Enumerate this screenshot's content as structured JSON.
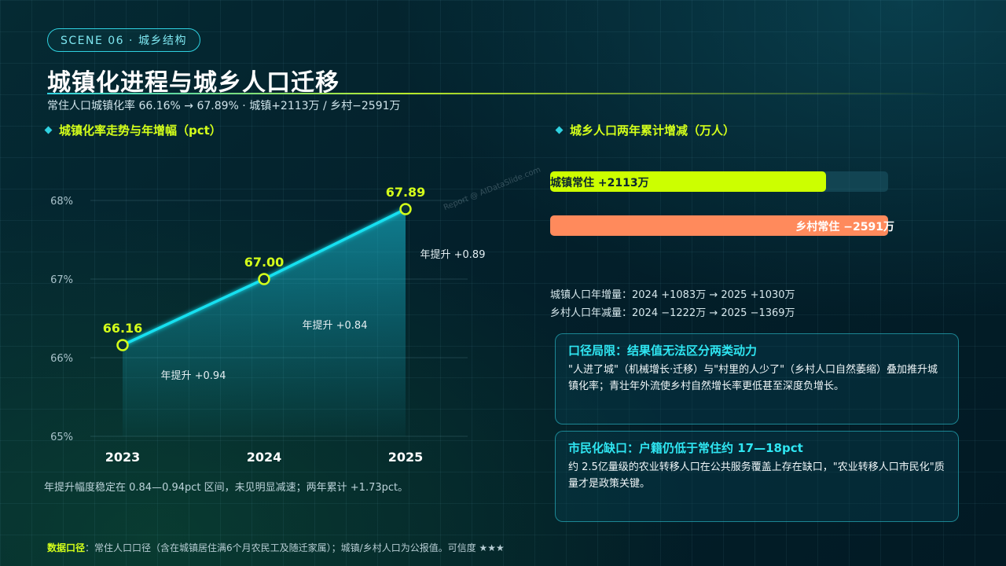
{
  "scene_badge": "SCENE 06 · 城乡结构",
  "title": "城镇化进程与城乡人口迁移",
  "subtitle": "常住人口城镇化率 66.16% → 67.89% · 城镇+2113万 / 乡村−2591万",
  "left_section": {
    "title": "城镇化率走势与年增幅（pct）"
  },
  "right_section": {
    "title": "城乡人口两年累计增减（万人）"
  },
  "watermark": "Report @ AIDataSlide.com",
  "chart_data": {
    "type": "line",
    "title": "城镇化率走势与年增幅（pct）",
    "x": [
      "2023",
      "2024",
      "2025"
    ],
    "series": [
      {
        "values": [
          66.16,
          67.0,
          67.89
        ]
      }
    ],
    "data_labels": [
      "66.16",
      "67.00",
      "67.89"
    ],
    "ylim": [
      65,
      68
    ],
    "yticks": [
      65,
      66,
      67,
      68
    ],
    "ytick_labels": [
      "65%",
      "66%",
      "67%",
      "68%"
    ],
    "annotations": [
      "年提升 +0.94",
      "年提升 +0.84",
      "年提升 +0.89"
    ],
    "grid": true,
    "colors": {
      "line": "#19e0f0",
      "marker": "#d4ff1a",
      "label": "#d4ff1a"
    }
  },
  "chart_note": "年提升幅度稳定在 0.84—0.94pct 区间，未见明显减速；两年累计 +1.73pct。",
  "bars": {
    "scale_max": 2591,
    "items": [
      {
        "label": "城镇常住 +2113万",
        "value": 2113,
        "color": "#ccff00"
      },
      {
        "label": "乡村常住 −2591万",
        "value": -2591,
        "color": "#ff8a5c"
      }
    ]
  },
  "yearly": {
    "urban": "城镇人口年增量：2024 +1083万 → 2025 +1030万",
    "rural": "乡村人口年减量：2024 −1222万 → 2025 −1369万"
  },
  "cards": [
    {
      "title": "口径局限：结果值无法区分两类动力",
      "body": "\"人进了城\"（机械增长·迁移）与\"村里的人少了\"（乡村人口自然萎缩）叠加推升城镇化率；青壮年外流使乡村自然增长率更低甚至深度负增长。"
    },
    {
      "title": "市民化缺口：户籍仍低于常住约 17—18pct",
      "body": "约 2.5亿量级的农业转移人口在公共服务覆盖上存在缺口，\"农业转移人口市民化\"质量才是政策关键。"
    }
  ],
  "footer": {
    "lead": "数据口径",
    "text": "：常住人口口径（含在城镇居住满6个月农民工及随迁家属）；城镇/乡村人口为公报值。可信度 ★★★"
  }
}
